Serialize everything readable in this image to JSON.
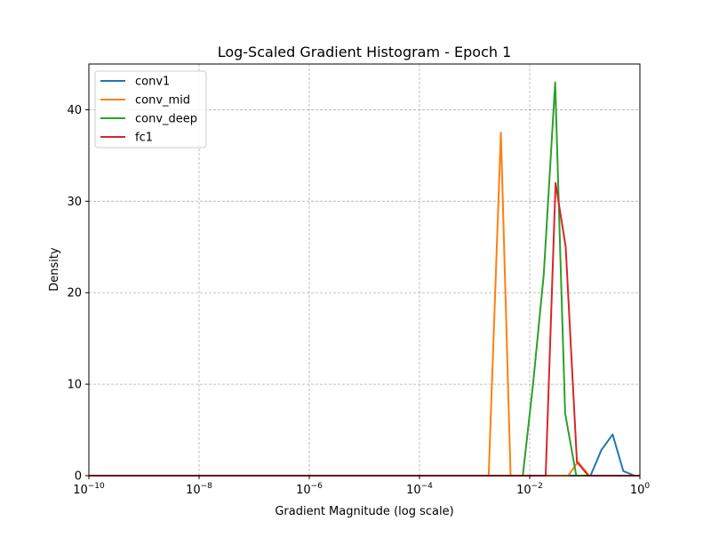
{
  "chart_data": {
    "type": "line",
    "title": "Log-Scaled Gradient Histogram - Epoch 1",
    "xlabel": "Gradient Magnitude (log scale)",
    "ylabel": "Density",
    "x_scale": "log",
    "xlim": [
      1e-10,
      1
    ],
    "ylim": [
      0,
      45
    ],
    "x_ticks": [
      {
        "value": 1e-10,
        "base": "10",
        "exp": "−10"
      },
      {
        "value": 1e-08,
        "base": "10",
        "exp": "−8"
      },
      {
        "value": 1e-06,
        "base": "10",
        "exp": "−6"
      },
      {
        "value": 0.0001,
        "base": "10",
        "exp": "−4"
      },
      {
        "value": 0.01,
        "base": "10",
        "exp": "−2"
      },
      {
        "value": 1,
        "base": "10",
        "exp": "0"
      }
    ],
    "y_ticks": [
      {
        "value": 0,
        "label": "0"
      },
      {
        "value": 10,
        "label": "10"
      },
      {
        "value": 20,
        "label": "20"
      },
      {
        "value": 30,
        "label": "30"
      },
      {
        "value": 40,
        "label": "40"
      }
    ],
    "grid": true,
    "legend_position": "top-left",
    "series": [
      {
        "name": "conv1",
        "color": "#1f77b4",
        "points": [
          [
            1e-10,
            0
          ],
          [
            1e-06,
            0
          ],
          [
            0.001,
            0
          ],
          [
            0.01,
            0
          ],
          [
            0.1,
            0
          ],
          [
            0.127,
            0
          ],
          [
            0.2,
            2.8
          ],
          [
            0.32,
            4.5
          ],
          [
            0.5,
            0.5
          ],
          [
            0.8,
            0
          ],
          [
            1,
            0
          ]
        ]
      },
      {
        "name": "conv_mid",
        "color": "#ff7f0e",
        "points": [
          [
            1e-10,
            0
          ],
          [
            1e-05,
            0
          ],
          [
            0.0018,
            0
          ],
          [
            0.003,
            37.5
          ],
          [
            0.0045,
            0
          ],
          [
            0.012,
            0
          ],
          [
            0.05,
            0
          ],
          [
            0.075,
            1.5
          ],
          [
            0.12,
            0
          ],
          [
            1,
            0
          ]
        ]
      },
      {
        "name": "conv_deep",
        "color": "#2ca02c",
        "points": [
          [
            1e-10,
            0
          ],
          [
            0.0075,
            0
          ],
          [
            0.0115,
            10
          ],
          [
            0.018,
            22
          ],
          [
            0.029,
            43
          ],
          [
            0.036,
            24
          ],
          [
            0.044,
            6.8
          ],
          [
            0.07,
            0
          ],
          [
            0.25,
            0
          ],
          [
            1,
            0
          ]
        ]
      },
      {
        "name": "fc1",
        "color": "#d62728",
        "points": [
          [
            1e-10,
            0
          ],
          [
            0.0195,
            0
          ],
          [
            0.0295,
            32
          ],
          [
            0.045,
            25
          ],
          [
            0.072,
            1.5
          ],
          [
            0.116,
            0
          ],
          [
            1,
            0
          ]
        ]
      }
    ]
  }
}
